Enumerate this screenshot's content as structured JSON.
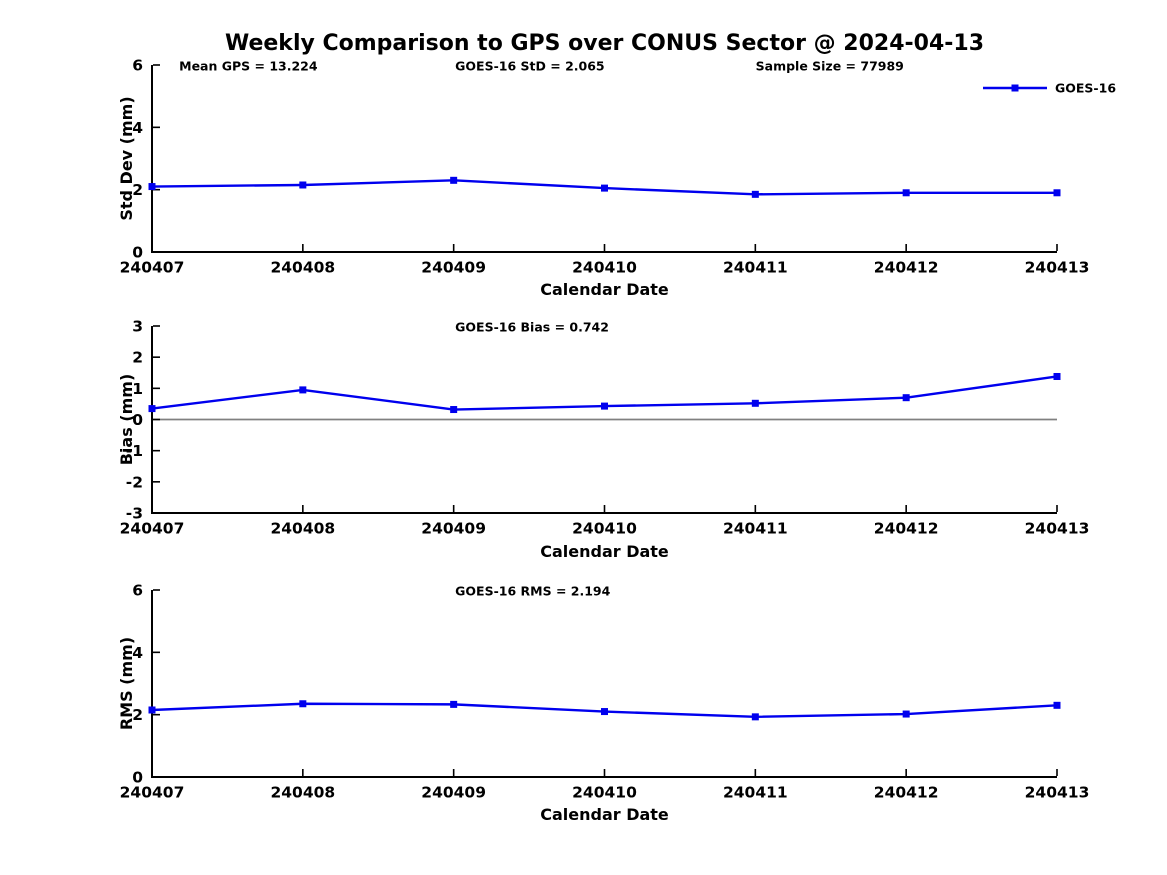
{
  "figure": {
    "title": "Weekly Comparison to GPS over CONUS Sector @ 2024-04-13",
    "colors": {
      "series": "#0000EE",
      "zero_line": "#808080",
      "axis": "#000000",
      "text": "#000000",
      "background": "#ffffff"
    }
  },
  "legend": {
    "label": "GOES-16",
    "position": "top-right"
  },
  "chart_data": [
    {
      "type": "line",
      "title": "",
      "xlabel": "Calendar Date",
      "ylabel": "Std Dev (mm)",
      "categories": [
        "240407",
        "240408",
        "240409",
        "240410",
        "240411",
        "240412",
        "240413"
      ],
      "series": [
        {
          "name": "GOES-16",
          "values": [
            2.1,
            2.15,
            2.3,
            2.05,
            1.85,
            1.9,
            1.9
          ]
        }
      ],
      "ylim": [
        0,
        6
      ],
      "yticks": [
        0,
        2,
        4,
        6
      ],
      "grid": false,
      "zero_line": false,
      "legend_label": "GOES-16",
      "annotations": [
        "Mean GPS = 13.224",
        "GOES-16 StD = 2.065",
        "Sample Size = 77989"
      ]
    },
    {
      "type": "line",
      "title": "",
      "xlabel": "Calendar Date",
      "ylabel": "Bias (mm)",
      "categories": [
        "240407",
        "240408",
        "240409",
        "240410",
        "240411",
        "240412",
        "240413"
      ],
      "series": [
        {
          "name": "GOES-16",
          "values": [
            0.35,
            0.95,
            0.32,
            0.43,
            0.52,
            0.7,
            1.38
          ]
        }
      ],
      "ylim": [
        -3,
        3
      ],
      "yticks": [
        -3,
        -2,
        -1,
        0,
        1,
        2,
        3
      ],
      "grid": false,
      "zero_line": true,
      "legend_label": "",
      "annotations": [
        "GOES-16 Bias  = 0.742"
      ]
    },
    {
      "type": "line",
      "title": "",
      "xlabel": "Calendar Date",
      "ylabel": "RMS (mm)",
      "categories": [
        "240407",
        "240408",
        "240409",
        "240410",
        "240411",
        "240412",
        "240413"
      ],
      "series": [
        {
          "name": "GOES-16",
          "values": [
            2.15,
            2.35,
            2.33,
            2.1,
            1.93,
            2.02,
            2.3
          ]
        }
      ],
      "ylim": [
        0,
        6
      ],
      "yticks": [
        0,
        2,
        4,
        6
      ],
      "grid": false,
      "zero_line": false,
      "legend_label": "",
      "annotations": [
        "GOES-16 RMS = 2.194"
      ]
    }
  ]
}
